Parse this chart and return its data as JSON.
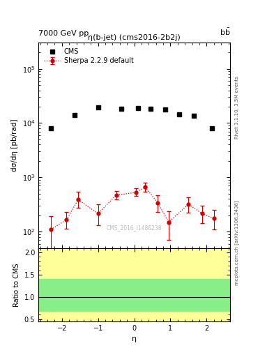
{
  "title_top": "7000 GeV pp",
  "title_top_right": "b$\\overline{\\text{b}}$",
  "plot_title": "η(b-jet) (cms2016-2b2j)",
  "cms_watermark": "CMS_2016_I1486238",
  "right_label_top": "Rivet 3.1.10, 3.5M events",
  "right_label_bottom": "mcplots.cern.ch [arXiv:1306.3436]",
  "xlabel": "η",
  "ylabel_main": "dσ/dη [pb/rad]",
  "ylabel_ratio": "Ratio to CMS",
  "cms_x": [
    -2.3,
    -1.65,
    -1.0,
    -0.35,
    0.1,
    0.45,
    0.85,
    1.25,
    1.65,
    2.15
  ],
  "cms_y": [
    8000,
    14000,
    19500,
    18500,
    19000,
    18500,
    18000,
    14500,
    13500,
    8000
  ],
  "sherpa_x": [
    -2.3,
    -1.875,
    -1.55,
    -1.0,
    -0.5,
    0.05,
    0.3,
    0.65,
    0.95,
    1.5,
    1.875,
    2.2
  ],
  "sherpa_y": [
    110,
    165,
    390,
    215,
    470,
    530,
    660,
    340,
    150,
    320,
    215,
    175
  ],
  "sherpa_yerr_lo": [
    75,
    50,
    115,
    85,
    80,
    80,
    120,
    110,
    80,
    95,
    70,
    65
  ],
  "sherpa_yerr_hi": [
    85,
    65,
    160,
    100,
    95,
    95,
    140,
    130,
    90,
    115,
    85,
    75
  ],
  "ylim_main": [
    50,
    300000
  ],
  "ylim_ratio": [
    0.45,
    2.1
  ],
  "xlim": [
    -2.65,
    2.65
  ],
  "ratio_green_lo": 0.68,
  "ratio_green_hi": 1.4,
  "ratio_yellow_lo": 0.45,
  "ratio_yellow_hi": 2.1,
  "xticks": [
    -2,
    -1,
    0,
    1,
    2
  ],
  "yticks_ratio": [
    0.5,
    1.0,
    1.5,
    2.0
  ],
  "cms_color": "#000000",
  "sherpa_color": "#cc0000",
  "green_color": "#88ee88",
  "yellow_color": "#ffff99",
  "background_color": "#ffffff"
}
